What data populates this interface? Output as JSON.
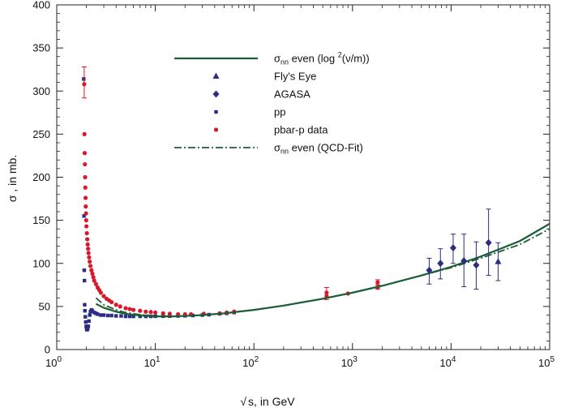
{
  "chart_data": {
    "type": "scatter",
    "title": "",
    "xlabel_radical": "√",
    "xlabel": "s, in GeV",
    "ylabel": "σ , in mb.",
    "xscale": "log",
    "xlim": [
      1,
      100000
    ],
    "ylim": [
      0,
      400
    ],
    "x_tick_labels": [
      {
        "base": "10",
        "exp": "0"
      },
      {
        "base": "10",
        "exp": "1"
      },
      {
        "base": "10",
        "exp": "2"
      },
      {
        "base": "10",
        "exp": "3"
      },
      {
        "base": "10",
        "exp": "4"
      },
      {
        "base": "10",
        "exp": "5"
      }
    ],
    "y_ticks": [
      0,
      50,
      100,
      150,
      200,
      250,
      300,
      350,
      400
    ],
    "legend_position": "top-center",
    "legend": [
      {
        "id": "fit_log2",
        "sym": "σ",
        "sub": "nn",
        "pre": " even (log ",
        "sup": "2",
        "post": "(ν/m))",
        "style": "solid-line"
      },
      {
        "id": "flys_eye",
        "label": "Fly's Eye",
        "style": "triangle"
      },
      {
        "id": "agasa",
        "label": "AGASA",
        "style": "diamond"
      },
      {
        "id": "pp",
        "label": "pp",
        "style": "square"
      },
      {
        "id": "pbarp",
        "label": "pbar-p data",
        "style": "circle"
      },
      {
        "id": "fit_qcd",
        "sym": "σ",
        "sub": "nn",
        "pre": " even (QCD-Fit)",
        "sup": "",
        "post": "",
        "style": "dash-dot-line"
      }
    ],
    "colors": {
      "fit": "#1a5e34",
      "cosmic": "#2d2d80",
      "pp": "#2b2b88",
      "pbarp": "#d8192c",
      "axis": "#222222"
    },
    "series": [
      {
        "name": "σnn even (log²(ν/m))",
        "kind": "line",
        "x": [
          2.5,
          3,
          4,
          5,
          7,
          10,
          15,
          20,
          30,
          50,
          70,
          100,
          200,
          500,
          1000,
          2000,
          5000,
          10000,
          20000,
          50000,
          100000
        ],
        "y": [
          53,
          48.5,
          44,
          41.5,
          39.5,
          38.5,
          38.5,
          39,
          40,
          42,
          44,
          46,
          51,
          59,
          66,
          74,
          86,
          96,
          108,
          126,
          146
        ]
      },
      {
        "name": "σnn even (QCD-Fit)",
        "kind": "dashdot",
        "x": [
          2.5,
          3,
          4,
          5,
          7,
          10,
          15,
          20,
          30,
          50,
          70,
          100,
          200,
          500,
          1000,
          2000,
          5000,
          10000,
          20000,
          50000,
          100000
        ],
        "y": [
          60,
          52,
          46,
          43,
          40.5,
          39,
          38.8,
          39,
          40,
          42,
          44,
          46,
          51,
          59,
          66,
          74,
          86,
          95,
          106,
          122,
          140
        ]
      },
      {
        "name": "Fly's Eye",
        "kind": "triangle",
        "points": [
          {
            "x": 30000,
            "y": 102,
            "lo": 80,
            "hi": 124
          }
        ]
      },
      {
        "name": "AGASA",
        "kind": "diamond",
        "points": [
          {
            "x": 6000,
            "y": 92,
            "lo": 76,
            "hi": 106
          },
          {
            "x": 7800,
            "y": 100,
            "lo": 82,
            "hi": 117
          },
          {
            "x": 10500,
            "y": 118,
            "lo": 100,
            "hi": 134
          },
          {
            "x": 13500,
            "y": 103,
            "lo": 73,
            "hi": 134
          },
          {
            "x": 18000,
            "y": 98,
            "lo": 70,
            "hi": 125
          },
          {
            "x": 24000,
            "y": 124,
            "lo": 86,
            "hi": 163
          }
        ]
      },
      {
        "name": "pp",
        "kind": "square",
        "points": [
          {
            "x": 1.88,
            "y": 314
          },
          {
            "x": 1.89,
            "y": 155
          },
          {
            "x": 1.9,
            "y": 92
          },
          {
            "x": 1.91,
            "y": 80
          },
          {
            "x": 1.92,
            "y": 52
          },
          {
            "x": 1.93,
            "y": 45
          },
          {
            "x": 1.95,
            "y": 38
          },
          {
            "x": 1.97,
            "y": 32
          },
          {
            "x": 1.99,
            "y": 27
          },
          {
            "x": 2.01,
            "y": 24
          },
          {
            "x": 2.03,
            "y": 23
          },
          {
            "x": 2.06,
            "y": 24
          },
          {
            "x": 2.09,
            "y": 27
          },
          {
            "x": 2.12,
            "y": 33
          },
          {
            "x": 2.16,
            "y": 40
          },
          {
            "x": 2.2,
            "y": 44
          },
          {
            "x": 2.25,
            "y": 46
          },
          {
            "x": 2.3,
            "y": 45
          },
          {
            "x": 2.4,
            "y": 43
          },
          {
            "x": 2.5,
            "y": 42
          },
          {
            "x": 2.6,
            "y": 41
          },
          {
            "x": 2.8,
            "y": 40
          },
          {
            "x": 3.0,
            "y": 40
          },
          {
            "x": 3.3,
            "y": 39.5
          },
          {
            "x": 3.6,
            "y": 39.5
          },
          {
            "x": 4.0,
            "y": 39
          },
          {
            "x": 4.5,
            "y": 39
          },
          {
            "x": 5,
            "y": 38.5
          },
          {
            "x": 5.5,
            "y": 38.5
          },
          {
            "x": 6,
            "y": 38.5
          },
          {
            "x": 7,
            "y": 38.5
          },
          {
            "x": 8,
            "y": 38.5
          },
          {
            "x": 9,
            "y": 38.5
          },
          {
            "x": 10,
            "y": 38.6
          },
          {
            "x": 12,
            "y": 38.7
          },
          {
            "x": 14,
            "y": 38.8
          },
          {
            "x": 17,
            "y": 39
          },
          {
            "x": 20,
            "y": 39.2
          },
          {
            "x": 24,
            "y": 39.5
          },
          {
            "x": 30,
            "y": 40
          },
          {
            "x": 35,
            "y": 40.5
          },
          {
            "x": 45,
            "y": 41.5
          },
          {
            "x": 53,
            "y": 42
          },
          {
            "x": 63,
            "y": 43
          }
        ]
      },
      {
        "name": "pbar-p data",
        "kind": "circle",
        "points": [
          {
            "x": 1.9,
            "y": 308,
            "lo": 292,
            "hi": 328
          },
          {
            "x": 1.91,
            "y": 250
          },
          {
            "x": 1.92,
            "y": 228
          },
          {
            "x": 1.93,
            "y": 215
          },
          {
            "x": 1.94,
            "y": 200
          },
          {
            "x": 1.95,
            "y": 188
          },
          {
            "x": 1.96,
            "y": 176
          },
          {
            "x": 1.97,
            "y": 166
          },
          {
            "x": 1.98,
            "y": 158
          },
          {
            "x": 1.99,
            "y": 150
          },
          {
            "x": 2.0,
            "y": 143
          },
          {
            "x": 2.02,
            "y": 135
          },
          {
            "x": 2.04,
            "y": 128
          },
          {
            "x": 2.06,
            "y": 122
          },
          {
            "x": 2.08,
            "y": 117
          },
          {
            "x": 2.1,
            "y": 112
          },
          {
            "x": 2.13,
            "y": 107
          },
          {
            "x": 2.16,
            "y": 102
          },
          {
            "x": 2.2,
            "y": 97
          },
          {
            "x": 2.25,
            "y": 92
          },
          {
            "x": 2.3,
            "y": 88
          },
          {
            "x": 2.35,
            "y": 84
          },
          {
            "x": 2.4,
            "y": 80
          },
          {
            "x": 2.5,
            "y": 76
          },
          {
            "x": 2.6,
            "y": 72
          },
          {
            "x": 2.7,
            "y": 69
          },
          {
            "x": 2.8,
            "y": 66
          },
          {
            "x": 3.0,
            "y": 62
          },
          {
            "x": 3.2,
            "y": 59
          },
          {
            "x": 3.4,
            "y": 57
          },
          {
            "x": 3.6,
            "y": 55
          },
          {
            "x": 4.0,
            "y": 52
          },
          {
            "x": 4.4,
            "y": 50
          },
          {
            "x": 5.0,
            "y": 48
          },
          {
            "x": 5.5,
            "y": 47
          },
          {
            "x": 6.0,
            "y": 46
          },
          {
            "x": 7.0,
            "y": 45
          },
          {
            "x": 8.0,
            "y": 44
          },
          {
            "x": 9.0,
            "y": 43.5
          },
          {
            "x": 10,
            "y": 43
          },
          {
            "x": 12,
            "y": 42
          },
          {
            "x": 14,
            "y": 41.5
          },
          {
            "x": 17,
            "y": 41
          },
          {
            "x": 20,
            "y": 41
          },
          {
            "x": 23,
            "y": 41
          },
          {
            "x": 31,
            "y": 41.5
          },
          {
            "x": 45,
            "y": 42
          },
          {
            "x": 53,
            "y": 43
          },
          {
            "x": 63,
            "y": 44
          },
          {
            "x": 546,
            "y": 62,
            "lo": 58,
            "hi": 72
          },
          {
            "x": 546,
            "y": 66
          },
          {
            "x": 900,
            "y": 65
          },
          {
            "x": 1800,
            "y": 72,
            "lo": 70,
            "hi": 75
          },
          {
            "x": 1800,
            "y": 78,
            "lo": 75,
            "hi": 81
          }
        ]
      }
    ]
  }
}
